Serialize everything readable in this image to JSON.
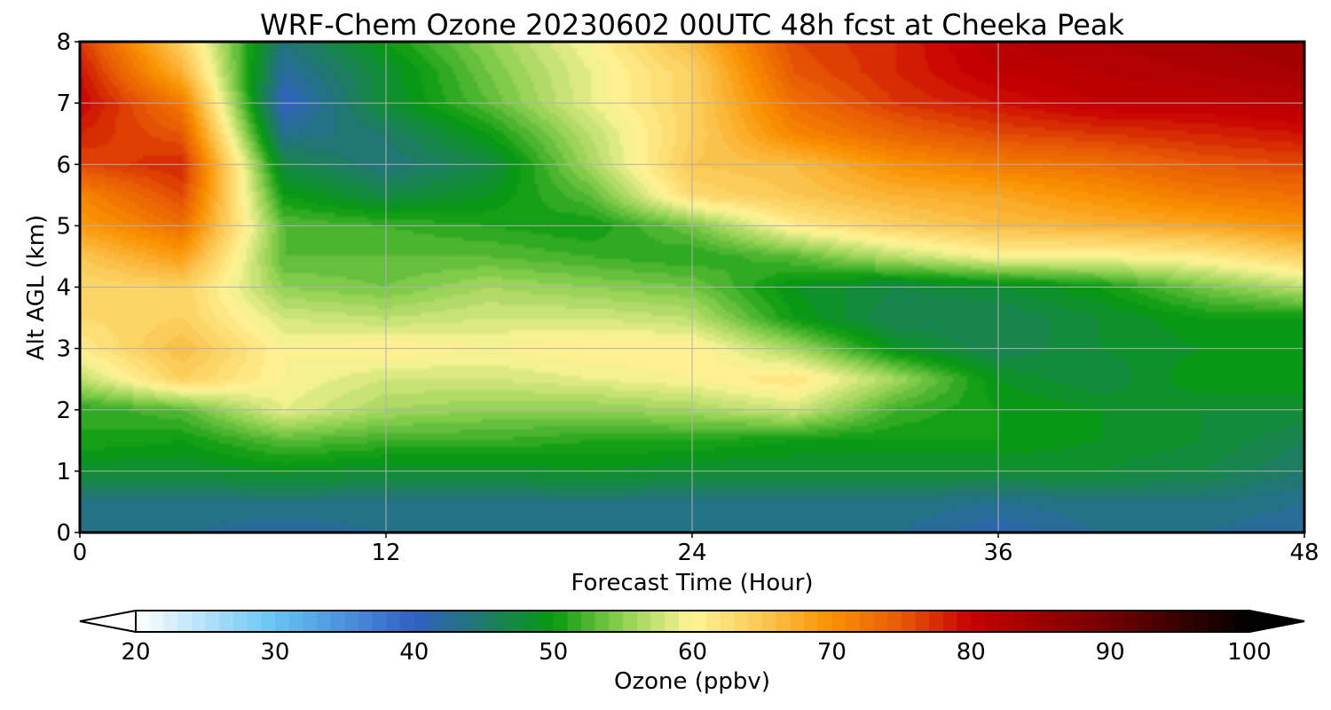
{
  "chart_data": {
    "type": "heatmap",
    "title": "WRF-Chem Ozone  20230602 00UTC 48h fcst at Cheeka Peak",
    "xlabel": "Forecast Time (Hour)",
    "ylabel": "Alt AGL (km)",
    "xlim": [
      0,
      48
    ],
    "ylim": [
      0,
      8
    ],
    "x_ticks": [
      0,
      12,
      24,
      36,
      48
    ],
    "y_ticks": [
      0,
      1,
      2,
      3,
      4,
      5,
      6,
      7,
      8
    ],
    "grid": true,
    "x": [
      0,
      4,
      8,
      12,
      16,
      20,
      24,
      28,
      32,
      36,
      40,
      44,
      48
    ],
    "y": [
      0,
      0.5,
      1,
      1.5,
      2,
      2.5,
      3,
      3.5,
      4,
      4.5,
      5,
      5.5,
      6,
      6.5,
      7,
      7.5,
      8
    ],
    "z": [
      [
        43,
        43,
        42,
        43,
        43,
        43,
        43,
        43,
        43,
        41,
        43,
        43,
        42
      ],
      [
        44,
        44,
        44,
        44,
        44,
        44,
        44,
        44,
        44,
        43,
        44,
        44,
        43
      ],
      [
        48,
        48,
        49,
        48,
        48,
        49,
        48,
        48,
        48,
        48,
        48,
        47,
        45
      ],
      [
        51,
        50,
        53,
        52,
        52,
        51,
        51,
        50,
        50,
        50,
        49,
        48,
        46
      ],
      [
        51,
        53,
        59,
        56,
        55,
        55,
        56,
        58,
        52,
        50,
        49,
        48,
        48
      ],
      [
        57,
        64,
        60,
        58,
        58,
        59,
        60,
        62,
        56,
        49,
        47,
        50,
        50
      ],
      [
        61,
        66,
        60,
        61,
        60,
        61,
        61,
        56,
        49,
        46,
        48,
        49,
        50
      ],
      [
        63,
        64,
        58,
        57,
        58,
        58,
        57,
        50,
        46,
        46,
        48,
        50,
        50
      ],
      [
        63,
        64,
        55,
        54,
        56,
        55,
        54,
        49,
        47,
        48,
        50,
        54,
        57
      ],
      [
        65,
        69,
        53,
        53,
        53,
        52,
        51,
        53,
        57,
        60,
        60,
        61,
        64
      ],
      [
        69,
        73,
        53,
        52,
        51,
        50,
        54,
        61,
        64,
        66,
        67,
        68,
        70
      ],
      [
        71,
        76,
        50,
        47,
        49,
        53,
        63,
        65,
        67,
        68,
        70,
        72,
        73
      ],
      [
        76,
        78,
        47,
        44,
        47,
        56,
        65,
        66,
        70,
        72,
        73,
        75,
        76
      ],
      [
        78,
        75,
        43,
        45,
        50,
        57,
        64,
        71,
        74,
        76,
        77,
        78,
        79
      ],
      [
        80,
        72,
        40,
        48,
        53,
        59,
        64,
        73,
        77,
        79,
        81,
        81,
        82
      ],
      [
        79,
        67,
        42,
        48,
        54,
        59,
        64,
        75,
        78,
        81,
        82,
        83,
        84
      ],
      [
        77,
        64,
        44,
        50,
        55,
        60,
        66,
        76,
        78,
        82,
        83,
        84,
        85
      ]
    ],
    "colorbar": {
      "label": "Ozone  (ppbv)",
      "ticks": [
        20,
        30,
        40,
        50,
        60,
        70,
        80,
        90,
        100
      ],
      "min": 20,
      "max": 100,
      "extend": "both",
      "stops": [
        {
          "v": 20,
          "c": "#ffffff"
        },
        {
          "v": 30,
          "c": "#66c4f4"
        },
        {
          "v": 40,
          "c": "#3160c4"
        },
        {
          "v": 45,
          "c": "#1f7a6a"
        },
        {
          "v": 50,
          "c": "#069a0e"
        },
        {
          "v": 55,
          "c": "#8fd051"
        },
        {
          "v": 60,
          "c": "#fff597"
        },
        {
          "v": 65,
          "c": "#fbc753"
        },
        {
          "v": 70,
          "c": "#fa9000"
        },
        {
          "v": 75,
          "c": "#e85a04"
        },
        {
          "v": 80,
          "c": "#c80002"
        },
        {
          "v": 90,
          "c": "#720000"
        },
        {
          "v": 100,
          "c": "#000000"
        }
      ]
    }
  }
}
